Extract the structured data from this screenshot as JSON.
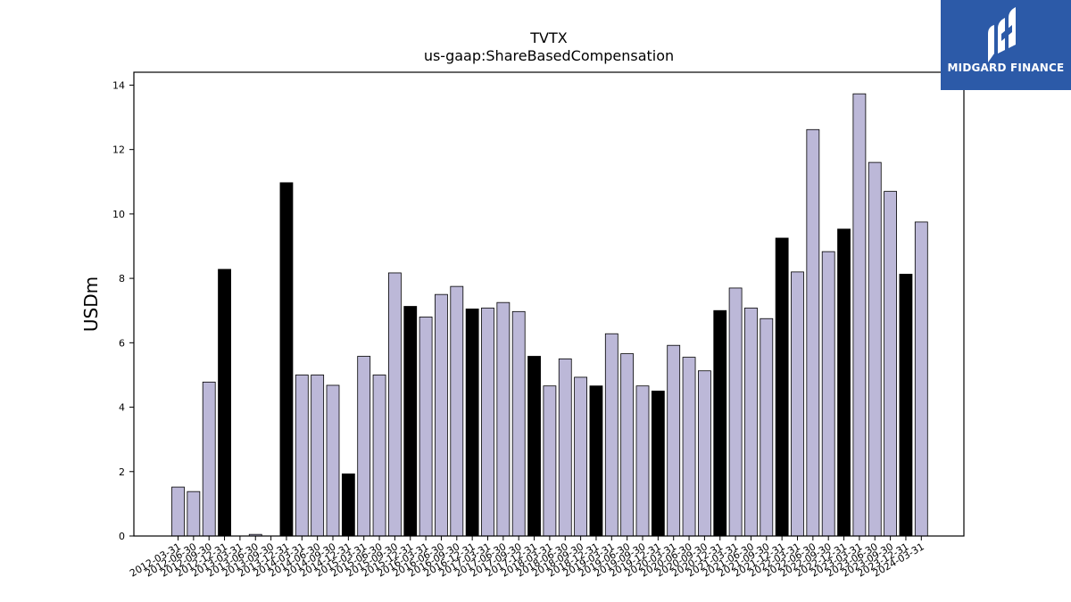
{
  "logo": {
    "text": "MIDGARD FINANCE",
    "color": "#2c5aa8"
  },
  "chart_data": {
    "type": "bar",
    "title": "TVTX",
    "subtitle": "us-gaap:ShareBasedCompensation",
    "xlabel": "",
    "ylabel": "USDm",
    "ylim": [
      0,
      14.4
    ],
    "yticks": [
      0,
      2,
      4,
      6,
      8,
      10,
      12,
      14
    ],
    "grid": false,
    "colors": {
      "quarter": "#bcb8d8",
      "annual": "#000000",
      "edge": "#000000"
    },
    "categories": [
      "2012-03-31",
      "2012-06-30",
      "2012-09-30",
      "2012-12-31",
      "2013-03-31",
      "2013-06-30",
      "2013-09-30",
      "2013-12-31",
      "2014-03-31",
      "2014-06-30",
      "2014-09-30",
      "2014-12-31",
      "2015-03-31",
      "2015-06-30",
      "2015-09-30",
      "2015-12-31",
      "2016-03-31",
      "2016-06-30",
      "2016-09-30",
      "2016-12-31",
      "2017-03-31",
      "2017-06-30",
      "2017-09-30",
      "2017-12-31",
      "2018-03-31",
      "2018-06-30",
      "2018-09-30",
      "2018-12-31",
      "2019-03-31",
      "2019-06-30",
      "2019-09-30",
      "2019-12-31",
      "2020-03-31",
      "2020-06-30",
      "2020-09-30",
      "2020-12-31",
      "2021-03-31",
      "2021-06-30",
      "2021-09-30",
      "2021-12-31",
      "2022-03-31",
      "2022-06-30",
      "2022-09-30",
      "2022-12-31",
      "2023-03-31",
      "2023-06-30",
      "2023-09-30",
      "2023-12-31",
      "2024-03-31"
    ],
    "values": [
      1.52,
      1.38,
      4.78,
      8.28,
      0.0,
      0.05,
      0.0,
      10.97,
      5.0,
      5.0,
      4.68,
      1.93,
      5.58,
      5.0,
      8.17,
      7.13,
      6.8,
      7.5,
      7.75,
      7.05,
      7.08,
      7.25,
      6.97,
      5.58,
      4.66,
      5.5,
      4.93,
      4.66,
      6.28,
      5.66,
      4.66,
      4.5,
      5.92,
      5.55,
      5.13,
      7.0,
      7.7,
      7.08,
      6.75,
      9.25,
      8.2,
      12.62,
      8.83,
      9.53,
      13.73,
      11.6,
      10.7,
      8.13,
      9.75
    ]
  }
}
